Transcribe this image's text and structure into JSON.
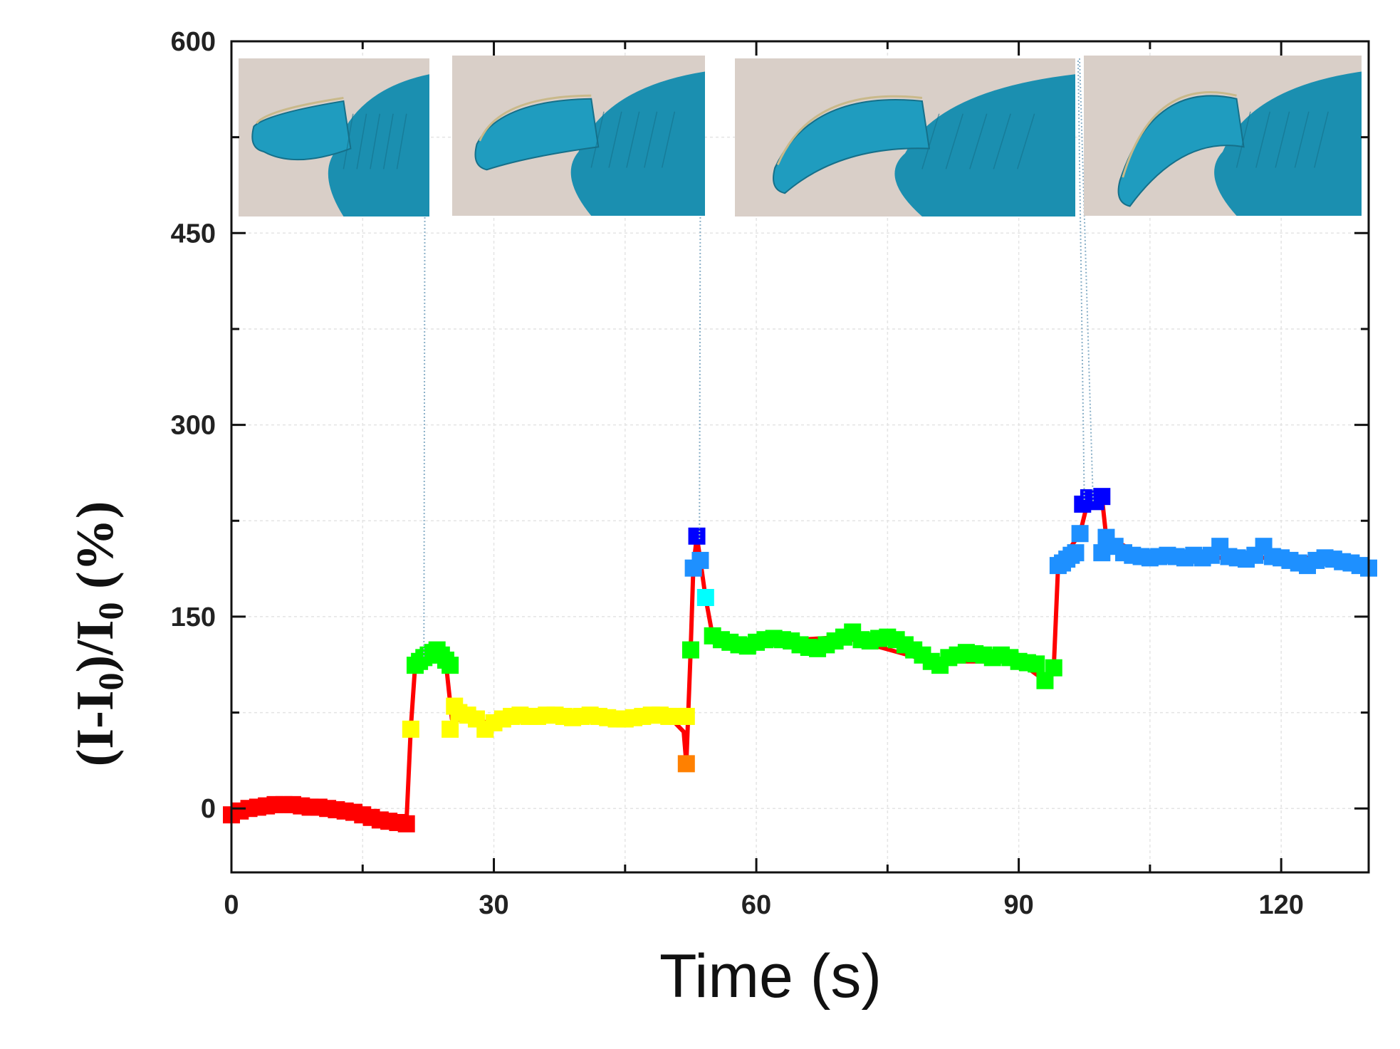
{
  "chart_data": {
    "type": "scatter",
    "title": "",
    "xlabel": "Time (s)",
    "ylabel": {
      "part1": "(I-I",
      "sub1": "0",
      "part2": ")/I",
      "sub2": "0",
      "part3": " (%)"
    },
    "xlim": [
      0,
      130
    ],
    "ylim": [
      -50,
      600
    ],
    "x_ticks": [
      0,
      30,
      60,
      90,
      120
    ],
    "y_ticks": [
      0,
      150,
      300,
      450,
      600
    ],
    "grid": true,
    "legend": "none",
    "colors": {
      "red": "#ff0000",
      "orange": "#ff8000",
      "yellow": "#ffff00",
      "green": "#00ff00",
      "cyan": "#00ffff",
      "lightblue": "#1e90ff",
      "blue": "#0000ff",
      "line": "#ff0000",
      "connector": "#8ab0c8",
      "glove": "#1b8fb0",
      "skin": "#d9cfc8"
    },
    "inset_photos": [
      {
        "icon": "finger-straight-glove-photo",
        "pointer_x": 22,
        "pointer_y": 118
      },
      {
        "icon": "finger-slightly-bent-glove-photo",
        "pointer_x": 53.5,
        "pointer_y": 210
      },
      {
        "icon": "finger-half-bent-glove-photo",
        "pointer_x": 97.5,
        "pointer_y": 240
      },
      {
        "icon": "finger-fully-bent-glove-photo",
        "pointer_x": 98.5,
        "pointer_y": 240
      }
    ],
    "series": [
      {
        "segment": "rest",
        "color": "red",
        "points": [
          [
            0,
            -5
          ],
          [
            1,
            -2
          ],
          [
            2,
            0
          ],
          [
            3,
            1
          ],
          [
            4,
            2
          ],
          [
            5,
            3
          ],
          [
            6,
            3
          ],
          [
            7,
            3
          ],
          [
            8,
            2
          ],
          [
            9,
            1
          ],
          [
            10,
            1
          ],
          [
            11,
            0
          ],
          [
            12,
            -1
          ],
          [
            13,
            -2
          ],
          [
            14,
            -3
          ],
          [
            15,
            -5
          ],
          [
            16,
            -7
          ],
          [
            17,
            -9
          ],
          [
            18,
            -10
          ],
          [
            19,
            -11
          ],
          [
            20,
            -12
          ]
        ]
      },
      {
        "segment": "bend1-rise",
        "color": "yellow",
        "points": [
          [
            20.5,
            62
          ]
        ]
      },
      {
        "segment": "bend1-peak",
        "color": "green",
        "points": [
          [
            21,
            112
          ],
          [
            21.5,
            115
          ],
          [
            22,
            118
          ],
          [
            22.5,
            120
          ],
          [
            23,
            122
          ],
          [
            23.5,
            124
          ],
          [
            24,
            120
          ],
          [
            24.5,
            116
          ],
          [
            25,
            112
          ]
        ]
      },
      {
        "segment": "hold1",
        "color": "yellow",
        "points": [
          [
            25,
            62
          ],
          [
            25.5,
            80
          ],
          [
            26,
            75
          ],
          [
            27,
            73
          ],
          [
            28,
            70
          ],
          [
            29,
            62
          ],
          [
            30,
            67
          ],
          [
            31,
            70
          ],
          [
            32,
            72
          ],
          [
            33,
            73
          ],
          [
            34,
            72
          ],
          [
            35,
            72
          ],
          [
            36,
            73
          ],
          [
            37,
            73
          ],
          [
            38,
            72
          ],
          [
            39,
            71
          ],
          [
            40,
            72
          ],
          [
            41,
            73
          ],
          [
            42,
            72
          ],
          [
            43,
            71
          ],
          [
            44,
            70
          ],
          [
            45,
            70
          ],
          [
            46,
            71
          ],
          [
            47,
            72
          ],
          [
            48,
            73
          ],
          [
            49,
            73
          ],
          [
            50,
            72
          ],
          [
            51,
            72
          ],
          [
            52,
            72
          ]
        ]
      },
      {
        "segment": "release1",
        "color": "orange",
        "points": [
          [
            52,
            35
          ]
        ]
      },
      {
        "segment": "bend2-rise",
        "color": "green",
        "points": [
          [
            52.5,
            124
          ]
        ]
      },
      {
        "segment": "bend2-peak",
        "color": "lightblue",
        "points": [
          [
            52.8,
            188
          ],
          [
            53.6,
            194
          ]
        ]
      },
      {
        "segment": "bend2-top",
        "color": "blue",
        "points": [
          [
            53.2,
            213
          ]
        ]
      },
      {
        "segment": "bend2-drop",
        "color": "cyan",
        "points": [
          [
            54.2,
            165
          ]
        ]
      },
      {
        "segment": "hold2",
        "color": "green",
        "points": [
          [
            55,
            135
          ],
          [
            56,
            132
          ],
          [
            57,
            130
          ],
          [
            58,
            128
          ],
          [
            59,
            127
          ],
          [
            60,
            130
          ],
          [
            61,
            132
          ],
          [
            62,
            133
          ],
          [
            63,
            132
          ],
          [
            64,
            131
          ],
          [
            65,
            128
          ],
          [
            66,
            126
          ],
          [
            67,
            125
          ],
          [
            68,
            128
          ],
          [
            69,
            131
          ],
          [
            70,
            134
          ],
          [
            71,
            138
          ],
          [
            72,
            132
          ],
          [
            73,
            131
          ],
          [
            74,
            133
          ],
          [
            75,
            134
          ],
          [
            76,
            132
          ],
          [
            77,
            128
          ],
          [
            78,
            124
          ],
          [
            79,
            120
          ],
          [
            80,
            115
          ],
          [
            81,
            112
          ],
          [
            82,
            118
          ],
          [
            83,
            120
          ],
          [
            84,
            122
          ],
          [
            85,
            121
          ],
          [
            86,
            120
          ],
          [
            87,
            118
          ],
          [
            88,
            120
          ],
          [
            89,
            118
          ],
          [
            90,
            115
          ],
          [
            91,
            114
          ],
          [
            92,
            113
          ],
          [
            93,
            100
          ],
          [
            94,
            110
          ]
        ]
      },
      {
        "segment": "bend3-rise",
        "color": "lightblue",
        "points": [
          [
            94.5,
            190
          ],
          [
            95,
            192
          ],
          [
            95.5,
            195
          ],
          [
            96,
            198
          ],
          [
            96.5,
            200
          ],
          [
            97,
            215
          ]
        ]
      },
      {
        "segment": "bend3-top",
        "color": "blue",
        "points": [
          [
            97.3,
            238
          ],
          [
            98,
            243
          ],
          [
            98.8,
            240
          ],
          [
            99.5,
            244
          ]
        ]
      },
      {
        "segment": "hold3",
        "color": "lightblue",
        "points": [
          [
            99.5,
            200
          ],
          [
            100,
            212
          ],
          [
            101,
            205
          ],
          [
            102,
            200
          ],
          [
            103,
            198
          ],
          [
            104,
            197
          ],
          [
            105,
            196
          ],
          [
            106,
            197
          ],
          [
            107,
            198
          ],
          [
            108,
            197
          ],
          [
            109,
            196
          ],
          [
            110,
            198
          ],
          [
            111,
            196
          ],
          [
            112,
            198
          ],
          [
            113,
            205
          ],
          [
            114,
            197
          ],
          [
            115,
            196
          ],
          [
            116,
            195
          ],
          [
            117,
            198
          ],
          [
            118,
            205
          ],
          [
            119,
            197
          ],
          [
            120,
            196
          ],
          [
            121,
            194
          ],
          [
            122,
            192
          ],
          [
            123,
            190
          ],
          [
            124,
            194
          ],
          [
            125,
            196
          ],
          [
            126,
            195
          ],
          [
            127,
            193
          ],
          [
            128,
            192
          ],
          [
            129,
            190
          ],
          [
            130,
            188
          ]
        ]
      }
    ],
    "red_line": [
      [
        0,
        -5
      ],
      [
        5,
        3
      ],
      [
        10,
        1
      ],
      [
        15,
        -5
      ],
      [
        20,
        -12
      ],
      [
        20.5,
        62
      ],
      [
        21,
        112
      ],
      [
        23,
        122
      ],
      [
        24.5,
        115
      ],
      [
        25.2,
        70
      ],
      [
        30,
        67
      ],
      [
        40,
        72
      ],
      [
        50,
        72
      ],
      [
        51.7,
        60
      ],
      [
        52,
        35
      ],
      [
        52.5,
        124
      ],
      [
        52.8,
        188
      ],
      [
        53.2,
        213
      ],
      [
        53.6,
        194
      ],
      [
        54.2,
        165
      ],
      [
        55,
        135
      ],
      [
        60,
        130
      ],
      [
        70,
        134
      ],
      [
        80,
        115
      ],
      [
        90,
        115
      ],
      [
        93,
        100
      ],
      [
        94,
        110
      ],
      [
        94.5,
        190
      ],
      [
        97,
        215
      ],
      [
        98,
        243
      ],
      [
        99.5,
        244
      ],
      [
        100,
        212
      ],
      [
        105,
        196
      ],
      [
        115,
        196
      ],
      [
        125,
        196
      ],
      [
        130,
        188
      ]
    ]
  }
}
